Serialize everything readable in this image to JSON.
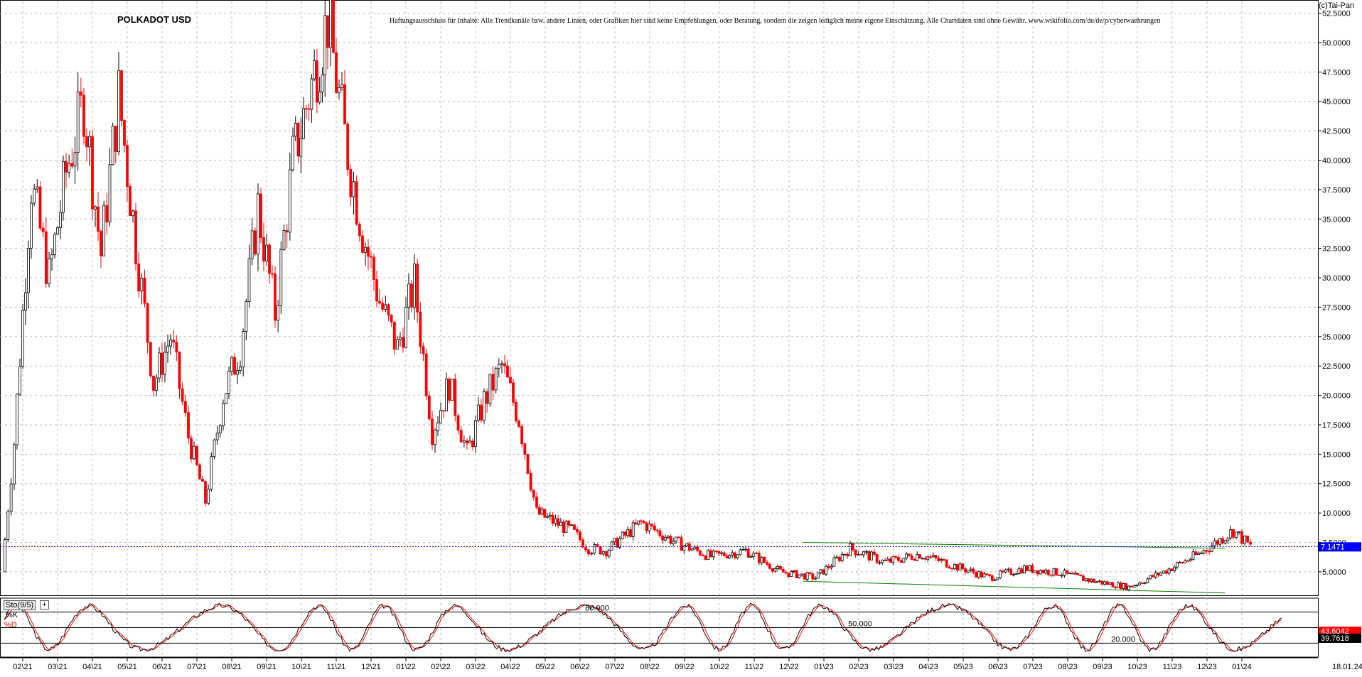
{
  "header": {
    "title": "POLKADOT USD",
    "disclaimer": "Haftungsausschluss für Inhalte: Alle Trendkanäle bzw. andere Linien, oder Grafiken hier sind keine Empfehlungen, oder Beratung, sondern die zeigen lediglich meine eigene Einschätzung. Alle Chartdaten sind ohne Gewähr. www.wikifolio.com/de/de/p/cyberwaehrungen",
    "copyright": "(c)Tai-Pan"
  },
  "indicator": {
    "name": "Sto(9/5)",
    "k_label": "%K",
    "d_label": "%D",
    "box_label": "+"
  },
  "colors": {
    "up_candle": "#000000",
    "down_candle": "#ff0000",
    "grid": "#b8b8b8",
    "current_price_line": "#0000ff",
    "trendline": "#008000",
    "k_line": "#000000",
    "d_line": "#ff0000",
    "price_tag_bg": "#0000ff",
    "d_tag_bg": "#ff0000",
    "k_tag_bg": "#000000"
  },
  "chart_data": {
    "type": "candlestick",
    "title": "POLKADOT USD",
    "y_axis": {
      "position": "right",
      "range": [
        3.0,
        53.5
      ],
      "ticks": [
        "52.5000",
        "50.0000",
        "47.5000",
        "45.0000",
        "42.5000",
        "40.0000",
        "37.5000",
        "35.0000",
        "32.5000",
        "30.0000",
        "27.5000",
        "25.0000",
        "22.5000",
        "20.0000",
        "17.5000",
        "15.0000",
        "12.5000",
        "10.0000",
        "7.5000",
        "5.0000"
      ]
    },
    "x_axis": {
      "ticks": [
        "02\\21",
        "03\\21",
        "04\\21",
        "05\\21",
        "06\\21",
        "07\\21",
        "08\\21",
        "09\\21",
        "10\\21",
        "11\\21",
        "12\\21",
        "01\\22",
        "02\\22",
        "03\\22",
        "04\\22",
        "05\\22",
        "06\\22",
        "07\\22",
        "08\\22",
        "09\\22",
        "10\\22",
        "11\\22",
        "12\\22",
        "01\\23",
        "02\\23",
        "03\\23",
        "04\\23",
        "05\\23",
        "06\\23",
        "07\\23",
        "08\\23",
        "09\\23",
        "10\\23",
        "11\\23",
        "12\\23",
        "01\\24"
      ],
      "end_label": "18.01.24"
    },
    "grid": true,
    "current_price": {
      "value": 7.1471,
      "label": "7.1471"
    },
    "price_path": [
      [
        "01\\21",
        5.0
      ],
      [
        "02\\21",
        16.0
      ],
      [
        "02\\21",
        38.0
      ],
      [
        "03\\21",
        30.0
      ],
      [
        "03\\21",
        39.0
      ],
      [
        "04\\21",
        45.0
      ],
      [
        "04\\21",
        32.0
      ],
      [
        "05\\21",
        45.5
      ],
      [
        "05\\21",
        33.0
      ],
      [
        "06\\21",
        21.0
      ],
      [
        "06\\21",
        25.0
      ],
      [
        "07\\21",
        16.5
      ],
      [
        "07\\21",
        11.0
      ],
      [
        "08\\21",
        20.0
      ],
      [
        "08\\21",
        24.0
      ],
      [
        "09\\21",
        36.0
      ],
      [
        "09\\21",
        27.0
      ],
      [
        "10\\21",
        40.0
      ],
      [
        "11\\21",
        52.0
      ],
      [
        "11\\21",
        42.0
      ],
      [
        "12\\21",
        34.0
      ],
      [
        "12\\21",
        28.0
      ],
      [
        "01\\22",
        24.0
      ],
      [
        "01\\22",
        29.5
      ],
      [
        "02\\22",
        17.0
      ],
      [
        "02\\22",
        21.0
      ],
      [
        "03\\22",
        15.0
      ],
      [
        "03\\22",
        19.5
      ],
      [
        "04\\22",
        22.5
      ],
      [
        "04\\22",
        18.0
      ],
      [
        "05\\22",
        10.0
      ],
      [
        "06\\22",
        8.5
      ],
      [
        "06\\22",
        7.0
      ],
      [
        "07\\22",
        6.8
      ],
      [
        "08\\22",
        9.2
      ],
      [
        "09\\22",
        7.5
      ],
      [
        "10\\22",
        6.3
      ],
      [
        "11\\22",
        6.8
      ],
      [
        "12\\22",
        5.0
      ],
      [
        "01\\23",
        4.5
      ],
      [
        "02\\23",
        7.0
      ],
      [
        "03\\23",
        5.8
      ],
      [
        "04\\23",
        6.5
      ],
      [
        "05\\23",
        5.5
      ],
      [
        "06\\23",
        4.5
      ],
      [
        "07\\23",
        5.3
      ],
      [
        "08\\23",
        4.9
      ],
      [
        "09\\23",
        4.2
      ],
      [
        "10\\23",
        3.7
      ],
      [
        "11\\23",
        5.0
      ],
      [
        "12\\23",
        6.5
      ],
      [
        "01\\24",
        8.5
      ],
      [
        "01\\24",
        7.15
      ]
    ],
    "trendlines": [
      {
        "from": [
          "12\\22",
          7.5
        ],
        "to": [
          "12\\23",
          7.0
        ]
      },
      {
        "from": [
          "12\\22",
          4.2
        ],
        "to": [
          "12\\23",
          3.2
        ]
      }
    ],
    "stochastic": {
      "name": "Sto(9/5)",
      "levels": [
        {
          "value": 80,
          "label": "80.000"
        },
        {
          "value": 50,
          "label": "50.000"
        },
        {
          "value": 20,
          "label": "20.000"
        }
      ],
      "readouts": [
        {
          "label": "43.6042",
          "series": "%D"
        },
        {
          "label": "39.7618",
          "series": "%K"
        }
      ]
    }
  }
}
